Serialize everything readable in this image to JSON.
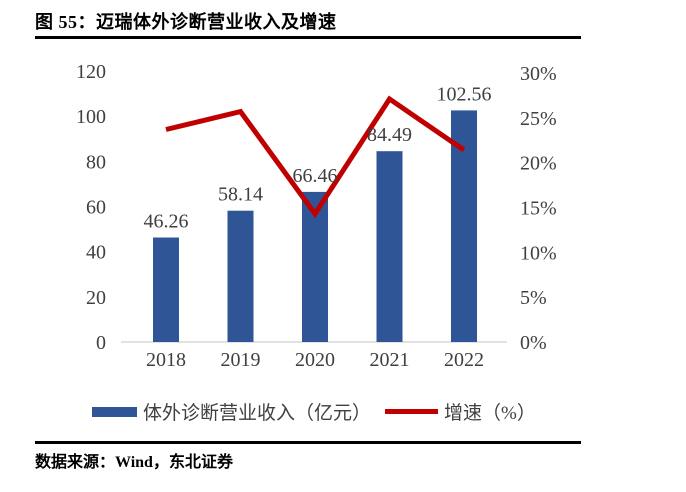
{
  "figure": {
    "title": "图 55：迈瑞体外诊断营业收入及增速",
    "source": "数据来源：Wind，东北证券"
  },
  "chart_data": {
    "type": "combo-bar-line-dual-axis",
    "categories": [
      "2018",
      "2019",
      "2020",
      "2021",
      "2022"
    ],
    "series": [
      {
        "name": "体外诊断营业收入（亿元）",
        "type": "bar",
        "axis": "left",
        "color": "#2F5597",
        "values": [
          46.26,
          58.14,
          66.46,
          84.49,
          102.56
        ],
        "labels": [
          "46.26",
          "58.14",
          "66.46",
          "84.49",
          "102.56"
        ]
      },
      {
        "name": "增速（%）",
        "type": "line",
        "axis": "right",
        "color": "#C00000",
        "values": [
          23.7,
          25.7,
          14.3,
          27.1,
          21.4
        ]
      }
    ],
    "left_axis": {
      "min": 0,
      "max": 120,
      "step": 20,
      "ticks": [
        "0",
        "20",
        "40",
        "60",
        "80",
        "100",
        "120"
      ]
    },
    "right_axis": {
      "min": 0,
      "max": 30,
      "step": 5,
      "ticks": [
        "0%",
        "5%",
        "10%",
        "15%",
        "20%",
        "25%",
        "30%"
      ]
    },
    "legend_position": "bottom",
    "grid": false,
    "text_color": "#404040",
    "baseline_color": "#D9D9D9"
  }
}
